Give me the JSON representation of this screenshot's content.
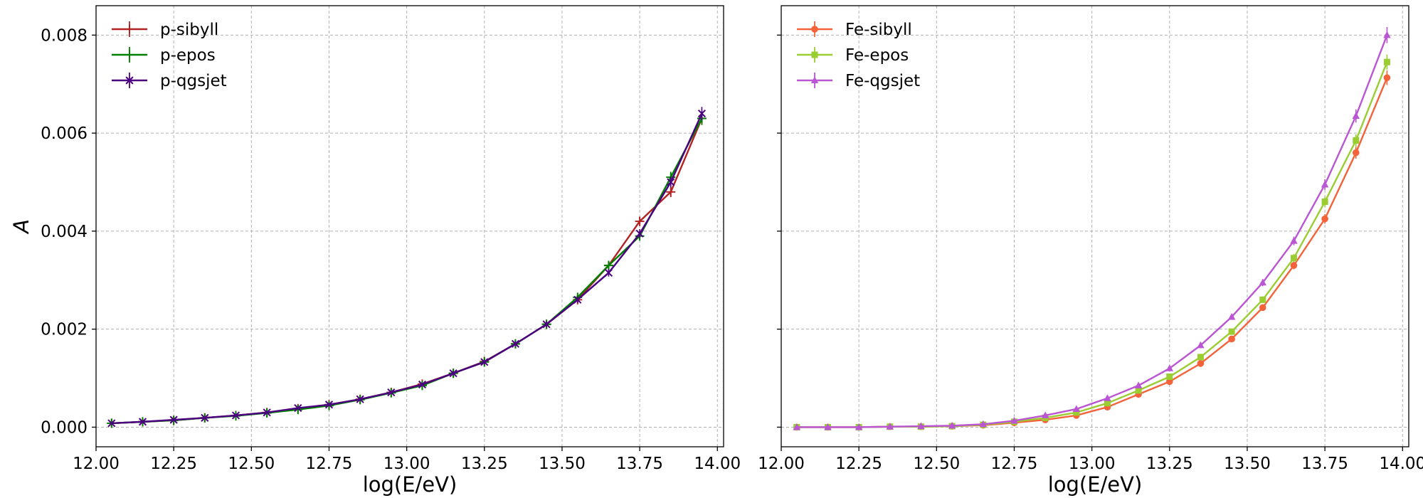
{
  "chart_data": [
    {
      "type": "line",
      "xlabel": "log(E/eV)",
      "ylabel": "A",
      "xlim": [
        12.0,
        14.02
      ],
      "ylim": [
        -0.0004,
        0.0086
      ],
      "xticks": [
        "12.00",
        "12.25",
        "12.50",
        "12.75",
        "13.00",
        "13.25",
        "13.50",
        "13.75",
        "14.00"
      ],
      "yticks": [
        "0.000",
        "0.002",
        "0.004",
        "0.006",
        "0.008"
      ],
      "grid": true,
      "legend_position": "top-left",
      "x": [
        12.05,
        12.15,
        12.25,
        12.35,
        12.45,
        12.55,
        12.65,
        12.75,
        12.85,
        12.95,
        13.05,
        13.15,
        13.25,
        13.35,
        13.45,
        13.55,
        13.65,
        13.75,
        13.85,
        13.95
      ],
      "series": [
        {
          "name": "p-sibyll",
          "color": "#b22222",
          "marker": "+",
          "values": [
            8e-05,
            0.00011,
            0.00014,
            0.00019,
            0.00024,
            0.0003,
            0.00038,
            0.00046,
            0.00057,
            0.00071,
            0.00088,
            0.0011,
            0.00134,
            0.0017,
            0.0021,
            0.0026,
            0.0033,
            0.0042,
            0.0048,
            0.0063
          ]
        },
        {
          "name": "p-epos",
          "color": "#008000",
          "marker": "+",
          "values": [
            8e-05,
            0.00011,
            0.00014,
            0.00019,
            0.00023,
            0.00029,
            0.00036,
            0.00044,
            0.00056,
            0.0007,
            0.00085,
            0.0011,
            0.00133,
            0.0017,
            0.0021,
            0.00265,
            0.0033,
            0.0039,
            0.0051,
            0.0063
          ]
        },
        {
          "name": "p-qgsjet",
          "color": "#4b0082",
          "marker": "x",
          "values": [
            8e-05,
            0.00011,
            0.00015,
            0.00019,
            0.00024,
            0.0003,
            0.00039,
            0.00046,
            0.00057,
            0.00071,
            0.00087,
            0.0011,
            0.00133,
            0.0017,
            0.0021,
            0.0026,
            0.00315,
            0.00395,
            0.005,
            0.0064
          ]
        }
      ]
    },
    {
      "type": "line",
      "xlabel": "log(E/eV)",
      "ylabel": "",
      "xlim": [
        12.0,
        14.02
      ],
      "ylim": [
        -0.0004,
        0.0086
      ],
      "xticks": [
        "12.00",
        "12.25",
        "12.50",
        "12.75",
        "13.00",
        "13.25",
        "13.50",
        "13.75",
        "14.00"
      ],
      "yticks": [
        "0.000",
        "0.002",
        "0.004",
        "0.006",
        "0.008"
      ],
      "grid": true,
      "legend_position": "top-left",
      "x": [
        12.05,
        12.15,
        12.25,
        12.35,
        12.45,
        12.55,
        12.65,
        12.75,
        12.85,
        12.95,
        13.05,
        13.15,
        13.25,
        13.35,
        13.45,
        13.55,
        13.65,
        13.75,
        13.85,
        13.95
      ],
      "series": [
        {
          "name": "Fe-sibyll",
          "color": "#f4623a",
          "marker": "o",
          "values": [
            0.0,
            0.0,
            0.0,
            1e-05,
            1e-05,
            2e-05,
            4e-05,
            9e-05,
            0.00015,
            0.00024,
            0.00041,
            0.00067,
            0.00093,
            0.0013,
            0.0018,
            0.00244,
            0.0033,
            0.00425,
            0.0056,
            0.00713
          ]
        },
        {
          "name": "Fe-epos",
          "color": "#9acd32",
          "marker": "s",
          "values": [
            0.0,
            0.0,
            0.0,
            1e-05,
            1e-05,
            2e-05,
            5e-05,
            0.00011,
            0.00019,
            0.0003,
            0.00049,
            0.00075,
            0.00103,
            0.00143,
            0.00195,
            0.0026,
            0.00345,
            0.0046,
            0.00585,
            0.00745
          ]
        },
        {
          "name": "Fe-qgsjet",
          "color": "#ba55d3",
          "marker": "^",
          "values": [
            0.0,
            0.0,
            0.0,
            1e-05,
            2e-05,
            3e-05,
            6e-05,
            0.00013,
            0.00024,
            0.00037,
            0.00059,
            0.00085,
            0.0012,
            0.00167,
            0.00225,
            0.00295,
            0.0038,
            0.00495,
            0.00635,
            0.008
          ]
        }
      ]
    }
  ]
}
